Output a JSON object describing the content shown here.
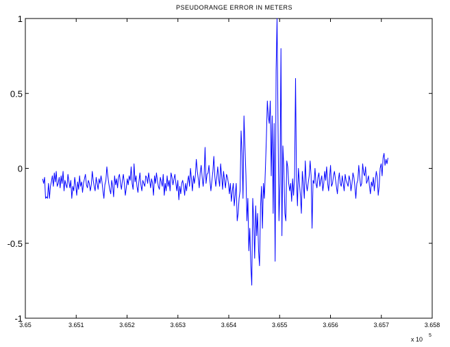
{
  "chart_data": {
    "type": "line",
    "title": "PSEUDORANGE ERROR IN METERS",
    "xlabel": "",
    "ylabel": "",
    "xlim": [
      3.65,
      3.658
    ],
    "ylim": [
      -1,
      1
    ],
    "x_multiplier_label": "x 10",
    "x_multiplier_exponent": "5",
    "x_ticks": [
      3.65,
      3.651,
      3.652,
      3.653,
      3.654,
      3.655,
      3.656,
      3.657,
      3.658
    ],
    "x_tick_labels": [
      "3.65",
      "3.651",
      "3.652",
      "3.653",
      "3.654",
      "3.655",
      "3.656",
      "3.657",
      "3.658"
    ],
    "y_ticks": [
      -1,
      -0.5,
      0,
      0.5,
      1
    ],
    "y_tick_labels": [
      "-1",
      "-0.5",
      "0",
      "0.5",
      "1"
    ],
    "grid": false,
    "series": [
      {
        "color": "#0000ff",
        "x_start": 3.65034,
        "x_end": 3.65713,
        "values": [
          -0.07,
          -0.1,
          -0.06,
          -0.2,
          -0.19,
          -0.2,
          -0.1,
          -0.2,
          -0.12,
          -0.09,
          -0.05,
          -0.12,
          -0.03,
          -0.09,
          -0.02,
          -0.12,
          -0.1,
          -0.06,
          -0.13,
          -0.05,
          -0.1,
          -0.02,
          -0.15,
          -0.08,
          -0.11,
          -0.13,
          -0.04,
          -0.09,
          -0.13,
          -0.08,
          -0.2,
          -0.12,
          -0.15,
          -0.06,
          -0.11,
          -0.18,
          -0.09,
          -0.14,
          -0.05,
          -0.12,
          -0.09,
          -0.16,
          -0.1,
          -0.07,
          -0.04,
          -0.11,
          -0.13,
          -0.08,
          -0.1,
          -0.15,
          -0.11,
          -0.02,
          -0.08,
          -0.12,
          -0.15,
          -0.06,
          -0.1,
          -0.14,
          -0.07,
          -0.1,
          -0.05,
          -0.09,
          -0.15,
          -0.2,
          -0.11,
          -0.08,
          0.01,
          -0.05,
          -0.1,
          -0.14,
          -0.17,
          -0.08,
          -0.12,
          -0.19,
          -0.05,
          -0.11,
          -0.07,
          -0.13,
          -0.06,
          -0.04,
          -0.1,
          -0.14,
          -0.08,
          -0.04,
          -0.1,
          -0.18,
          -0.13,
          -0.07,
          -0.11,
          -0.05,
          -0.08,
          0.01,
          -0.1,
          -0.14,
          0.03,
          -0.09,
          -0.05,
          -0.12,
          -0.16,
          -0.09,
          -0.03,
          -0.11,
          -0.15,
          -0.08,
          -0.1,
          -0.12,
          -0.05,
          -0.06,
          -0.1,
          -0.03,
          -0.08,
          -0.13,
          -0.07,
          -0.1,
          -0.18,
          -0.05,
          -0.1,
          -0.03,
          -0.08,
          -0.12,
          -0.14,
          -0.06,
          -0.09,
          -0.12,
          -0.04,
          -0.18,
          -0.1,
          -0.15,
          -0.05,
          -0.12,
          -0.08,
          -0.15,
          -0.03,
          -0.06,
          -0.11,
          -0.07,
          -0.04,
          -0.1,
          -0.15,
          -0.08,
          -0.21,
          -0.12,
          -0.17,
          -0.1,
          -0.08,
          -0.12,
          -0.18,
          -0.1,
          -0.15,
          -0.09,
          -0.05,
          -0.12,
          0.0,
          -0.07,
          -0.15,
          -0.05,
          -0.1,
          -0.05,
          0.06,
          -0.02,
          -0.07,
          -0.13,
          -0.03,
          0.02,
          -0.06,
          -0.12,
          -0.05,
          0.14,
          -0.1,
          -0.04,
          -0.03,
          0.02,
          -0.08,
          -0.15,
          -0.08,
          -0.02,
          0.08,
          -0.05,
          -0.12,
          -0.06,
          0.01,
          -0.07,
          -0.12,
          0.03,
          -0.05,
          -0.14,
          -0.02,
          -0.08,
          -0.13,
          -0.04,
          -0.06,
          -0.1,
          -0.17,
          -0.1,
          -0.22,
          -0.15,
          -0.1,
          -0.25,
          -0.18,
          -0.1,
          -0.35,
          -0.3,
          -0.2,
          -0.15,
          0.25,
          0.1,
          -0.2,
          0.35,
          0.15,
          -0.05,
          -0.35,
          -0.2,
          -0.55,
          -0.4,
          -0.65,
          -0.78,
          -0.2,
          -0.35,
          -0.6,
          -0.25,
          -0.45,
          -0.3,
          -0.55,
          -0.65,
          -0.25,
          -0.12,
          -0.4,
          -0.1,
          -0.2,
          0.0,
          0.2,
          0.45,
          0.35,
          0.3,
          0.45,
          -0.05,
          0.35,
          -0.3,
          0.3,
          -0.62,
          0.65,
          1.0,
          0.3,
          -0.35,
          -0.1,
          0.8,
          -0.45,
          0.15,
          0.0,
          -0.3,
          -0.35,
          0.05,
          0.01,
          -0.1,
          -0.15,
          -0.1,
          -0.22,
          -0.07,
          -0.18,
          -0.05,
          0.6,
          -0.08,
          -0.25,
          0.0,
          -0.1,
          -0.18,
          -0.3,
          -0.02,
          -0.1,
          -0.2,
          0.05,
          -0.1,
          -0.15,
          -0.1,
          -0.05,
          0.05,
          -0.05,
          -0.4,
          -0.08,
          -0.1,
          0.0,
          -0.1,
          -0.13,
          -0.06,
          -0.03,
          -0.12,
          -0.08,
          -0.05,
          -0.15,
          -0.1,
          -0.02,
          -0.08,
          0.01,
          -0.1,
          -0.15,
          -0.06,
          0.02,
          -0.12,
          -0.1,
          -0.05,
          -0.02,
          -0.07,
          -0.12,
          -0.17,
          -0.08,
          -0.03,
          -0.1,
          -0.12,
          -0.05,
          -0.1,
          -0.15,
          -0.04,
          -0.08,
          -0.1,
          -0.12,
          -0.05,
          -0.08,
          -0.15,
          -0.1,
          -0.03,
          -0.06,
          -0.12,
          -0.2,
          -0.1,
          -0.08,
          0.02,
          -0.06,
          -0.12,
          -0.1,
          0.03,
          -0.03,
          -0.05,
          0.01,
          -0.1,
          -0.08,
          -0.05,
          -0.12,
          -0.17,
          -0.09,
          -0.12,
          -0.06,
          -0.15,
          -0.08,
          -0.02,
          -0.06,
          -0.18,
          -0.12,
          0.0,
          0.03,
          -0.05,
          0.07,
          0.1,
          0.02,
          0.06,
          0.03,
          0.07
        ]
      }
    ]
  }
}
